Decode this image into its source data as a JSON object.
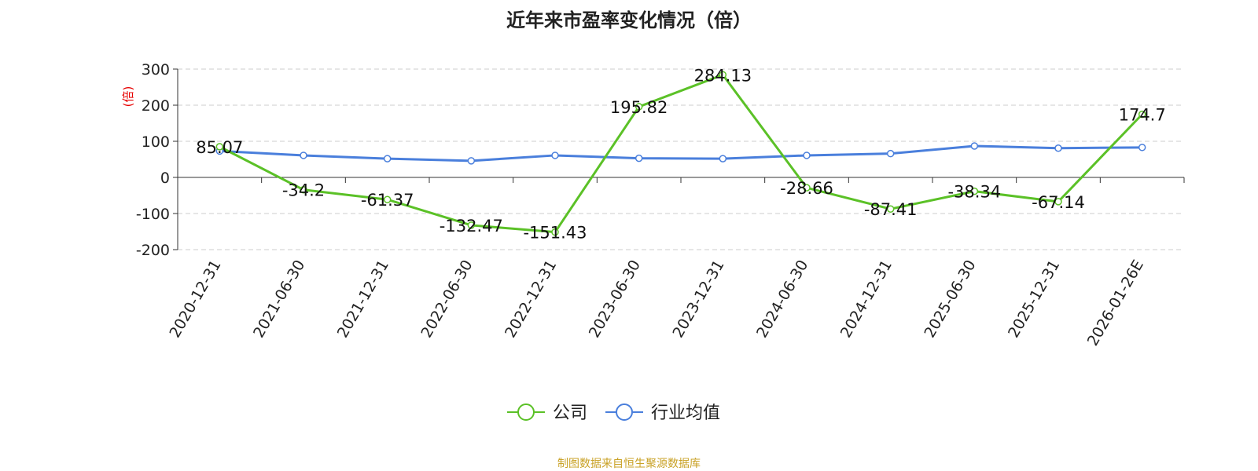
{
  "colors": {
    "company": "#5bc127",
    "industry": "#4a7fdc",
    "source": "#c9a227",
    "unit": "#e60000"
  },
  "chart_data": {
    "type": "line",
    "title": "近年来市盈率变化情况（倍）",
    "ylabel": "(倍)",
    "categories": [
      "2020-12-31",
      "2021-06-30",
      "2021-12-31",
      "2022-06-30",
      "2022-12-31",
      "2023-06-30",
      "2023-12-31",
      "2024-06-30",
      "2024-12-31",
      "2025-06-30",
      "2025-12-31",
      "2026-01-26E"
    ],
    "ylim": [
      -200,
      300
    ],
    "yticks": [
      300,
      200,
      100,
      0,
      -100,
      -200
    ],
    "grid": true,
    "legend_position": "bottom",
    "series": [
      {
        "name": "公司",
        "values": [
          85.07,
          -34.2,
          -61.37,
          -132.47,
          -151.43,
          195.82,
          284.13,
          -28.66,
          -87.41,
          -38.34,
          -67.14,
          174.7
        ],
        "labels": [
          "85.07",
          "-34.2",
          "-61.37",
          "-132.47",
          "-151.43",
          "195.82",
          "284.13",
          "-28.66",
          "-87.41",
          "-38.34",
          "-67.14",
          "174.7"
        ]
      },
      {
        "name": "行业均值",
        "values": [
          73,
          61,
          52,
          46,
          61,
          53,
          52,
          61,
          66,
          87,
          81,
          83
        ]
      }
    ]
  },
  "source": "制图数据来自恒生聚源数据库"
}
